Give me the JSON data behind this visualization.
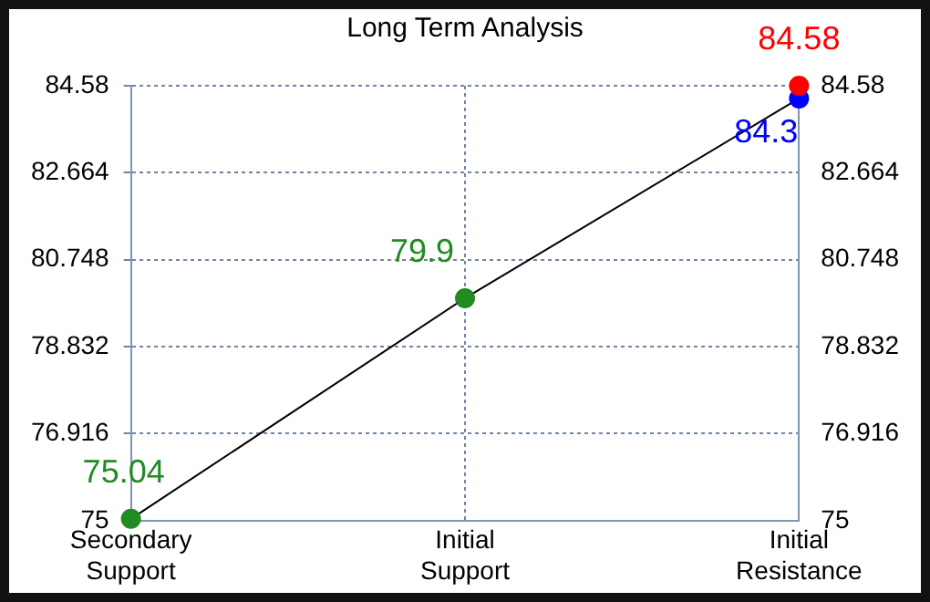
{
  "chart_data": {
    "type": "line",
    "title": "Long Term Analysis",
    "categories": [
      "Secondary\nSupport",
      "Initial\nSupport",
      "Initial\nResistance"
    ],
    "series": [
      {
        "type": "line",
        "color": "#000000",
        "marker": "none",
        "line_style": "solid",
        "values": [
          75.04,
          79.9,
          84.3
        ]
      },
      {
        "type": "scatter",
        "marker": "circle",
        "x": [
          "Secondary\nSupport",
          "Initial\nSupport",
          "Initial\nResistance",
          "Initial\nResistance"
        ],
        "values": [
          75.04,
          79.9,
          84.3,
          84.58
        ],
        "colors": [
          "#228b22",
          "#228b22",
          "#0000ff",
          "#ff0000"
        ],
        "data_labels": true
      }
    ],
    "ylim": [
      75,
      84.58
    ],
    "yticks": [
      75,
      76.916,
      78.832,
      80.748,
      82.664,
      84.58
    ],
    "y2lim": [
      75,
      84.58
    ],
    "y2ticks": [
      75,
      76.916,
      78.832,
      80.748,
      82.664,
      84.58
    ],
    "grid": true,
    "legend": false
  }
}
